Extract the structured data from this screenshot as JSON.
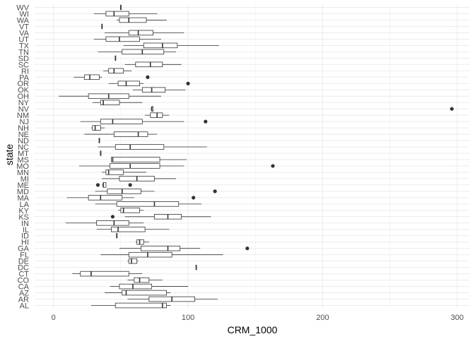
{
  "chart_data": {
    "type": "boxplot",
    "orientation": "horizontal",
    "xlabel": "CRM_1000",
    "ylabel": "state",
    "xlim": [
      -14,
      309
    ],
    "x_ticks": [
      0,
      100,
      200,
      300
    ],
    "grid": true,
    "legend": "none",
    "colors": {
      "grid": "#ebebeb",
      "box": "#333333",
      "point": "#333333",
      "tick": "#4d4d4d"
    },
    "categories": [
      "AL",
      "AR",
      "AZ",
      "CA",
      "CO",
      "CT",
      "DC",
      "DE",
      "FL",
      "GA",
      "HI",
      "ID",
      "IL",
      "IN",
      "KS",
      "KY",
      "LA",
      "MA",
      "MD",
      "ME",
      "MI",
      "MN",
      "MO",
      "MS",
      "MT",
      "NC",
      "ND",
      "NE",
      "NH",
      "NJ",
      "NM",
      "NV",
      "NY",
      "OH",
      "OK",
      "OR",
      "PA",
      "RI",
      "SC",
      "SD",
      "TN",
      "TX",
      "UT",
      "VA",
      "VT",
      "WA",
      "WI",
      "WV"
    ],
    "boxes": [
      {
        "state": "AL",
        "lo": 28,
        "q1": 46,
        "med": 81,
        "q3": 84,
        "hi": 87,
        "outliers": []
      },
      {
        "state": "AR",
        "lo": 55,
        "q1": 71,
        "med": 88,
        "q3": 105,
        "hi": 122,
        "outliers": []
      },
      {
        "state": "AZ",
        "lo": 38,
        "q1": 51,
        "med": 54,
        "q3": 84,
        "hi": 87,
        "outliers": []
      },
      {
        "state": "CA",
        "lo": 42,
        "q1": 49,
        "med": 59,
        "q3": 73,
        "hi": 100,
        "outliers": []
      },
      {
        "state": "CO",
        "lo": 55,
        "q1": 60,
        "med": 64,
        "q3": 71,
        "hi": 81,
        "outliers": []
      },
      {
        "state": "CT",
        "lo": 14,
        "q1": 20,
        "med": 28,
        "q3": 56,
        "hi": 66,
        "outliers": []
      },
      {
        "state": "DC",
        "lo": 106,
        "q1": 106,
        "med": 106,
        "q3": 106,
        "hi": 106,
        "outliers": []
      },
      {
        "state": "DE",
        "lo": 55,
        "q1": 56,
        "med": 58,
        "q3": 62,
        "hi": 63,
        "outliers": []
      },
      {
        "state": "FL",
        "lo": 35,
        "q1": 56,
        "med": 70,
        "q3": 88,
        "hi": 126,
        "outliers": []
      },
      {
        "state": "GA",
        "lo": 49,
        "q1": 65,
        "med": 85,
        "q3": 94,
        "hi": 109,
        "outliers": [
          144
        ]
      },
      {
        "state": "HI",
        "lo": 61,
        "q1": 62,
        "med": 64,
        "q3": 67,
        "hi": 71,
        "outliers": []
      },
      {
        "state": "ID",
        "lo": 47,
        "q1": 47,
        "med": 47,
        "q3": 47,
        "hi": 47,
        "outliers": []
      },
      {
        "state": "IL",
        "lo": 32,
        "q1": 43,
        "med": 48,
        "q3": 68,
        "hi": 86,
        "outliers": []
      },
      {
        "state": "IN",
        "lo": 9,
        "q1": 32,
        "med": 45,
        "q3": 56,
        "hi": 67,
        "outliers": []
      },
      {
        "state": "KS",
        "lo": 53,
        "q1": 75,
        "med": 85,
        "q3": 95,
        "hi": 117,
        "outliers": [
          44
        ]
      },
      {
        "state": "KY",
        "lo": 48,
        "q1": 50,
        "med": 52,
        "q3": 64,
        "hi": 67,
        "outliers": []
      },
      {
        "state": "LA",
        "lo": 31,
        "q1": 47,
        "med": 75,
        "q3": 93,
        "hi": 110,
        "outliers": []
      },
      {
        "state": "MA",
        "lo": 10,
        "q1": 26,
        "med": 35,
        "q3": 51,
        "hi": 60,
        "outliers": [
          104
        ]
      },
      {
        "state": "MD",
        "lo": 31,
        "q1": 40,
        "med": 51,
        "q3": 65,
        "hi": 75,
        "outliers": [
          120
        ]
      },
      {
        "state": "ME",
        "lo": 36,
        "q1": 37,
        "med": 37,
        "q3": 39,
        "hi": 39,
        "outliers": [
          33,
          57
        ]
      },
      {
        "state": "MI",
        "lo": 36,
        "q1": 49,
        "med": 62,
        "q3": 75,
        "hi": 91,
        "outliers": []
      },
      {
        "state": "MN",
        "lo": 36,
        "q1": 39,
        "med": 41,
        "q3": 52,
        "hi": 69,
        "outliers": []
      },
      {
        "state": "MO",
        "lo": 19,
        "q1": 42,
        "med": 57,
        "q3": 79,
        "hi": 97,
        "outliers": [
          163
        ]
      },
      {
        "state": "MS",
        "lo": 43,
        "q1": 43,
        "med": 44,
        "q3": 79,
        "hi": 99,
        "outliers": []
      },
      {
        "state": "MT",
        "lo": 35,
        "q1": 35,
        "med": 35,
        "q3": 35,
        "hi": 35,
        "outliers": []
      },
      {
        "state": "NC",
        "lo": 33,
        "q1": 46,
        "med": 57,
        "q3": 82,
        "hi": 114,
        "outliers": []
      },
      {
        "state": "ND",
        "lo": 34,
        "q1": 34,
        "med": 34,
        "q3": 34,
        "hi": 34,
        "outliers": []
      },
      {
        "state": "NE",
        "lo": 23,
        "q1": 45,
        "med": 63,
        "q3": 70,
        "hi": 77,
        "outliers": []
      },
      {
        "state": "NH",
        "lo": 28,
        "q1": 29,
        "med": 31,
        "q3": 35,
        "hi": 38,
        "outliers": []
      },
      {
        "state": "NJ",
        "lo": 20,
        "q1": 35,
        "med": 44,
        "q3": 66,
        "hi": 97,
        "outliers": [
          113
        ]
      },
      {
        "state": "NM",
        "lo": 68,
        "q1": 72,
        "med": 77,
        "q3": 81,
        "hi": 86,
        "outliers": []
      },
      {
        "state": "NV",
        "lo": 72,
        "q1": 73,
        "med": 73,
        "q3": 74,
        "hi": 74,
        "outliers": [
          296
        ]
      },
      {
        "state": "NY",
        "lo": 29,
        "q1": 35,
        "med": 37,
        "q3": 49,
        "hi": 66,
        "outliers": []
      },
      {
        "state": "OH",
        "lo": 4,
        "q1": 26,
        "med": 41,
        "q3": 56,
        "hi": 80,
        "outliers": []
      },
      {
        "state": "OK",
        "lo": 59,
        "q1": 66,
        "med": 73,
        "q3": 83,
        "hi": 98,
        "outliers": []
      },
      {
        "state": "OR",
        "lo": 41,
        "q1": 48,
        "med": 54,
        "q3": 64,
        "hi": 67,
        "outliers": [
          100
        ]
      },
      {
        "state": "PA",
        "lo": 15,
        "q1": 23,
        "med": 27,
        "q3": 34,
        "hi": 36,
        "outliers": [
          70
        ]
      },
      {
        "state": "RI",
        "lo": 37,
        "q1": 41,
        "med": 45,
        "q3": 52,
        "hi": 58,
        "outliers": []
      },
      {
        "state": "SC",
        "lo": 53,
        "q1": 61,
        "med": 72,
        "q3": 81,
        "hi": 95,
        "outliers": []
      },
      {
        "state": "SD",
        "lo": 46,
        "q1": 46,
        "med": 46,
        "q3": 46,
        "hi": 46,
        "outliers": []
      },
      {
        "state": "TN",
        "lo": 33,
        "q1": 51,
        "med": 66,
        "q3": 82,
        "hi": 91,
        "outliers": []
      },
      {
        "state": "TX",
        "lo": 52,
        "q1": 67,
        "med": 81,
        "q3": 92,
        "hi": 123,
        "outliers": []
      },
      {
        "state": "UT",
        "lo": 30,
        "q1": 39,
        "med": 49,
        "q3": 64,
        "hi": 80,
        "outliers": []
      },
      {
        "state": "VA",
        "lo": 38,
        "q1": 56,
        "med": 63,
        "q3": 74,
        "hi": 97,
        "outliers": []
      },
      {
        "state": "VT",
        "lo": 36,
        "q1": 36,
        "med": 36,
        "q3": 36,
        "hi": 36,
        "outliers": []
      },
      {
        "state": "WA",
        "lo": 47,
        "q1": 49,
        "med": 56,
        "q3": 69,
        "hi": 84,
        "outliers": []
      },
      {
        "state": "WI",
        "lo": 30,
        "q1": 39,
        "med": 45,
        "q3": 56,
        "hi": 77,
        "outliers": []
      },
      {
        "state": "WV",
        "lo": 50,
        "q1": 50,
        "med": 50,
        "q3": 50,
        "hi": 50,
        "outliers": []
      }
    ]
  }
}
